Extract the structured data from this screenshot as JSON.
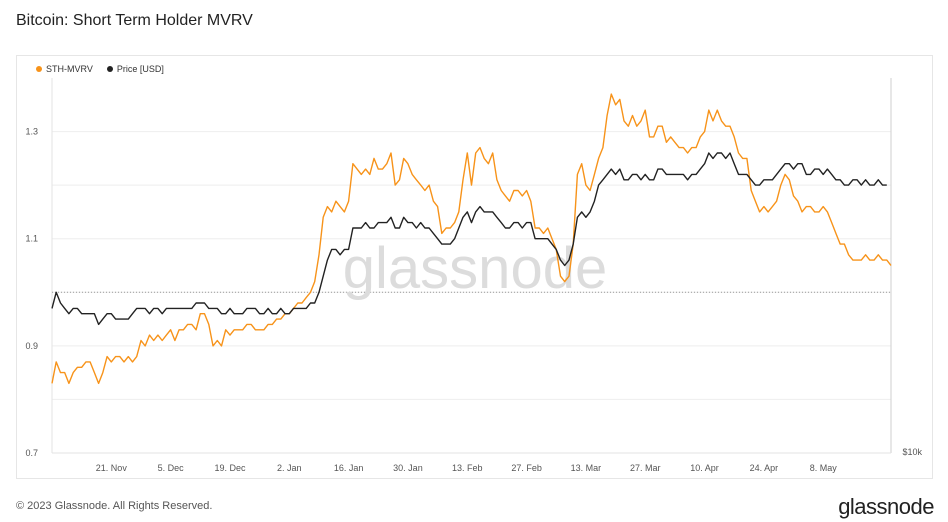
{
  "title": "Bitcoin: Short Term Holder MVRV",
  "watermark": "glassnode",
  "footer": {
    "copyright": "© 2023 Glassnode. All Rights Reserved.",
    "brand": "glassnode"
  },
  "colors": {
    "sth_mvrv": "#f7931a",
    "price": "#222222",
    "grid": "#eeeeee",
    "reference": "#999999"
  },
  "chart_data": {
    "type": "line",
    "xlabel": "",
    "ylabel": "",
    "y_ticks": [
      "1.3",
      "1.1",
      "0.9",
      "0.7"
    ],
    "y_tick_values": [
      1.3,
      1.1,
      0.9,
      0.7
    ],
    "ylim": [
      0.7,
      1.4
    ],
    "reference_line": 1.0,
    "right_axis_label": "$10k",
    "x_ticks": [
      "21. Nov",
      "5. Dec",
      "19. Dec",
      "2. Jan",
      "16. Jan",
      "30. Jan",
      "13. Feb",
      "27. Feb",
      "13. Mar",
      "27. Mar",
      "10. Apr",
      "24. Apr",
      "8. May"
    ],
    "x_tick_index": [
      14,
      28,
      42,
      56,
      70,
      84,
      98,
      112,
      126,
      140,
      154,
      168,
      182
    ],
    "legend": [
      "STH-MVRV",
      "Price [USD]"
    ],
    "legend_position": "top-left",
    "grid": true,
    "series": [
      {
        "name": "STH-MVRV",
        "values": [
          0.83,
          0.87,
          0.85,
          0.85,
          0.83,
          0.85,
          0.86,
          0.86,
          0.87,
          0.87,
          0.85,
          0.83,
          0.85,
          0.88,
          0.87,
          0.88,
          0.88,
          0.87,
          0.88,
          0.87,
          0.88,
          0.91,
          0.9,
          0.92,
          0.91,
          0.92,
          0.91,
          0.92,
          0.93,
          0.91,
          0.93,
          0.93,
          0.94,
          0.94,
          0.93,
          0.96,
          0.96,
          0.94,
          0.9,
          0.91,
          0.9,
          0.93,
          0.92,
          0.93,
          0.93,
          0.93,
          0.94,
          0.94,
          0.93,
          0.93,
          0.93,
          0.94,
          0.94,
          0.95,
          0.95,
          0.96,
          0.96,
          0.97,
          0.98,
          0.98,
          0.99,
          1.0,
          1.02,
          1.07,
          1.14,
          1.16,
          1.15,
          1.17,
          1.16,
          1.15,
          1.17,
          1.24,
          1.23,
          1.22,
          1.23,
          1.22,
          1.25,
          1.23,
          1.23,
          1.24,
          1.26,
          1.2,
          1.21,
          1.25,
          1.24,
          1.22,
          1.21,
          1.2,
          1.19,
          1.2,
          1.17,
          1.16,
          1.11,
          1.12,
          1.12,
          1.13,
          1.15,
          1.21,
          1.26,
          1.2,
          1.26,
          1.27,
          1.25,
          1.24,
          1.26,
          1.21,
          1.19,
          1.18,
          1.17,
          1.19,
          1.19,
          1.18,
          1.19,
          1.17,
          1.12,
          1.12,
          1.11,
          1.12,
          1.1,
          1.08,
          1.03,
          1.02,
          1.03,
          1.09,
          1.22,
          1.24,
          1.2,
          1.19,
          1.22,
          1.25,
          1.27,
          1.33,
          1.37,
          1.35,
          1.36,
          1.32,
          1.31,
          1.33,
          1.31,
          1.32,
          1.34,
          1.29,
          1.29,
          1.31,
          1.31,
          1.28,
          1.29,
          1.28,
          1.27,
          1.27,
          1.26,
          1.27,
          1.27,
          1.29,
          1.3,
          1.34,
          1.32,
          1.34,
          1.32,
          1.31,
          1.31,
          1.29,
          1.26,
          1.25,
          1.25,
          1.19,
          1.17,
          1.15,
          1.16,
          1.15,
          1.16,
          1.17,
          1.2,
          1.22,
          1.21,
          1.18,
          1.17,
          1.15,
          1.16,
          1.16,
          1.15,
          1.15,
          1.16,
          1.15,
          1.13,
          1.11,
          1.09,
          1.09,
          1.07,
          1.06,
          1.06,
          1.06,
          1.07,
          1.06,
          1.06,
          1.07,
          1.06,
          1.06,
          1.05
        ]
      },
      {
        "name": "Price [USD]",
        "values": [
          0.97,
          1.0,
          0.98,
          0.97,
          0.96,
          0.97,
          0.97,
          0.96,
          0.96,
          0.96,
          0.96,
          0.94,
          0.95,
          0.96,
          0.96,
          0.95,
          0.95,
          0.95,
          0.95,
          0.96,
          0.97,
          0.97,
          0.97,
          0.96,
          0.97,
          0.97,
          0.96,
          0.97,
          0.97,
          0.97,
          0.97,
          0.97,
          0.97,
          0.97,
          0.98,
          0.98,
          0.98,
          0.97,
          0.97,
          0.97,
          0.96,
          0.96,
          0.97,
          0.96,
          0.96,
          0.96,
          0.97,
          0.97,
          0.97,
          0.96,
          0.96,
          0.97,
          0.96,
          0.96,
          0.97,
          0.96,
          0.96,
          0.97,
          0.97,
          0.97,
          0.97,
          0.98,
          0.98,
          1.0,
          1.03,
          1.06,
          1.08,
          1.08,
          1.07,
          1.08,
          1.08,
          1.12,
          1.12,
          1.12,
          1.13,
          1.12,
          1.12,
          1.13,
          1.13,
          1.13,
          1.14,
          1.12,
          1.12,
          1.14,
          1.13,
          1.13,
          1.12,
          1.13,
          1.12,
          1.12,
          1.11,
          1.1,
          1.09,
          1.09,
          1.09,
          1.1,
          1.12,
          1.14,
          1.15,
          1.13,
          1.15,
          1.16,
          1.15,
          1.15,
          1.15,
          1.14,
          1.13,
          1.12,
          1.12,
          1.13,
          1.13,
          1.12,
          1.13,
          1.13,
          1.1,
          1.1,
          1.1,
          1.1,
          1.09,
          1.08,
          1.06,
          1.05,
          1.06,
          1.09,
          1.14,
          1.15,
          1.14,
          1.15,
          1.17,
          1.2,
          1.21,
          1.22,
          1.23,
          1.22,
          1.23,
          1.21,
          1.21,
          1.22,
          1.22,
          1.21,
          1.22,
          1.21,
          1.21,
          1.23,
          1.23,
          1.22,
          1.22,
          1.22,
          1.22,
          1.22,
          1.21,
          1.22,
          1.22,
          1.23,
          1.24,
          1.26,
          1.25,
          1.26,
          1.26,
          1.25,
          1.26,
          1.24,
          1.22,
          1.22,
          1.22,
          1.21,
          1.2,
          1.2,
          1.21,
          1.21,
          1.21,
          1.22,
          1.23,
          1.24,
          1.24,
          1.23,
          1.24,
          1.24,
          1.22,
          1.22,
          1.23,
          1.23,
          1.22,
          1.23,
          1.22,
          1.21,
          1.21,
          1.2,
          1.2,
          1.21,
          1.21,
          1.2,
          1.21,
          1.2,
          1.2,
          1.21,
          1.2,
          1.2
        ]
      }
    ]
  }
}
